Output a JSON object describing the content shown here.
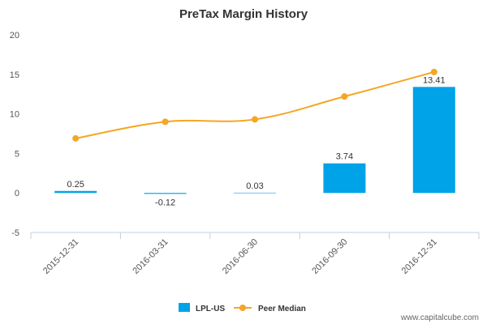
{
  "chart_data": {
    "type": "bar",
    "title": "PreTax Margin History",
    "categories": [
      "2015-12-31",
      "2016-03-31",
      "2016-06-30",
      "2016-09-30",
      "2016-12-31"
    ],
    "series": [
      {
        "name": "LPL-US",
        "type": "bar",
        "color": "#00a2e8",
        "values": [
          0.25,
          -0.12,
          0.03,
          3.74,
          13.41
        ],
        "labels": [
          "0.25",
          "-0.12",
          "0.03",
          "3.74",
          "13.41"
        ]
      },
      {
        "name": "Peer Median",
        "type": "line",
        "color": "#f5a623",
        "values": [
          6.9,
          9.0,
          9.3,
          12.2,
          15.3
        ]
      }
    ],
    "ylim": [
      -5,
      20
    ],
    "yticks": [
      -5,
      0,
      5,
      10,
      15,
      20
    ],
    "xlabel": "",
    "ylabel": "",
    "grid": false,
    "legend": "bottom-center"
  },
  "watermark": "www.capitalcube.com"
}
